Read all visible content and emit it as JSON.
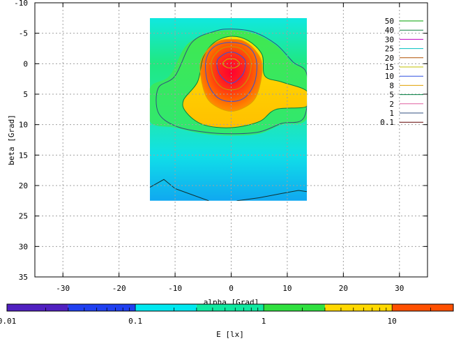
{
  "chart_data": {
    "type": "heatmap",
    "title": "",
    "xlabel": "alpha [Grad]",
    "ylabel": "beta [Grad]",
    "xlim": [
      -35,
      35
    ],
    "ylim": [
      -10,
      35
    ],
    "y_inverted": true,
    "x_ticks": [
      -30,
      -20,
      -10,
      0,
      10,
      20,
      30
    ],
    "y_ticks": [
      -10,
      -5,
      0,
      5,
      10,
      15,
      20,
      25,
      30,
      35
    ],
    "grid": true,
    "data_extent": {
      "alpha": [
        -14.5,
        13.5
      ],
      "beta": [
        -7.5,
        22.5
      ]
    },
    "peak": {
      "alpha": 0,
      "beta": 0,
      "value": 50
    },
    "contour_legend": {
      "placement": "top-right",
      "entries": [
        {
          "label": "50",
          "color": "#00a000"
        },
        {
          "label": "40",
          "color": "#108040"
        },
        {
          "label": "30",
          "color": "#c000c0"
        },
        {
          "label": "25",
          "color": "#00c0c0"
        },
        {
          "label": "20",
          "color": "#b05000"
        },
        {
          "label": "15",
          "color": "#c0c000"
        },
        {
          "label": "10",
          "color": "#3050e0"
        },
        {
          "label": "8",
          "color": "#e0a000"
        },
        {
          "label": "5",
          "color": "#008040"
        },
        {
          "label": "2",
          "color": "#e060a0"
        },
        {
          "label": "1",
          "color": "#305080"
        },
        {
          "label": "0.1",
          "color": "#600000"
        }
      ]
    },
    "colorbar": {
      "scale": "log",
      "range": [
        0.01,
        30
      ],
      "label": "E [lx]",
      "tick_labels": [
        "0.01",
        "0.1",
        "1",
        "10"
      ],
      "tick_values": [
        0.01,
        0.1,
        1,
        10
      ],
      "segments": [
        {
          "from": 0.01,
          "to": 0.03,
          "color": "#5020c0"
        },
        {
          "from": 0.03,
          "to": 0.1,
          "color": "#2040f0"
        },
        {
          "from": 0.1,
          "to": 0.3,
          "color": "#00e8f0"
        },
        {
          "from": 0.3,
          "to": 1,
          "color": "#10e8a0"
        },
        {
          "from": 1,
          "to": 3,
          "color": "#30e040"
        },
        {
          "from": 3,
          "to": 10,
          "color": "#ffd800"
        },
        {
          "from": 10,
          "to": 30,
          "color": "#ff5000"
        }
      ]
    }
  }
}
